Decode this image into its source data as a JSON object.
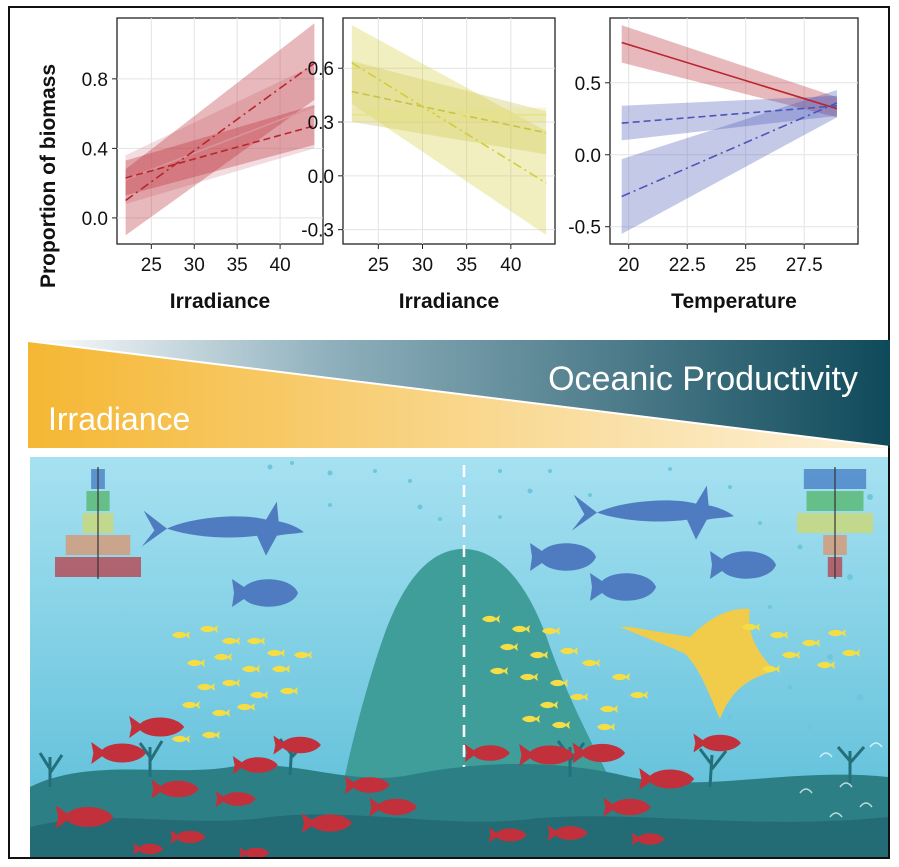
{
  "y_axis_title": "Proportion of biomass",
  "chart_data": [
    {
      "type": "line",
      "xlabel": "Irradiance",
      "ylabel": "Proportion of biomass",
      "xlim": [
        21,
        45
      ],
      "ylim": [
        -0.15,
        1.15
      ],
      "x_ticks": [
        "25",
        "30",
        "35",
        "40"
      ],
      "x_tick_values": [
        25,
        30,
        35,
        40
      ],
      "y_ticks": [
        "0.0",
        "0.4",
        "0.8"
      ],
      "y_tick_values": [
        0.0,
        0.4,
        0.8
      ],
      "grid": true,
      "series": [
        {
          "color": "#d9939b",
          "dash": "solid",
          "x": [
            22,
            44
          ],
          "y": [
            0.22,
            0.64
          ],
          "ci_lower": [
            0.08,
            0.4
          ],
          "ci_upper": [
            0.36,
            0.88
          ]
        },
        {
          "color": "#b8262f",
          "dash": "dashdot",
          "x": [
            22,
            44
          ],
          "y": [
            0.1,
            0.89
          ],
          "ci_lower": [
            -0.1,
            0.68
          ],
          "ci_upper": [
            0.28,
            1.12
          ]
        },
        {
          "color": "#b8262f",
          "dash": "dashed",
          "x": [
            22,
            44
          ],
          "y": [
            0.23,
            0.53
          ],
          "ci_lower": [
            0.13,
            0.42
          ],
          "ci_upper": [
            0.33,
            0.65
          ]
        }
      ]
    },
    {
      "type": "line",
      "xlabel": "Irradiance",
      "ylabel": "",
      "xlim": [
        21,
        45
      ],
      "ylim": [
        -0.38,
        0.88
      ],
      "x_ticks": [
        "25",
        "30",
        "35",
        "40"
      ],
      "x_tick_values": [
        25,
        30,
        35,
        40
      ],
      "y_ticks": [
        "-0.3",
        "0.0",
        "0.3",
        "0.6"
      ],
      "y_tick_values": [
        -0.3,
        0.0,
        0.3,
        0.6
      ],
      "grid": true,
      "series": [
        {
          "color": "#c8c24a",
          "dash": "dashed",
          "x": [
            22,
            44
          ],
          "y": [
            0.47,
            0.24
          ],
          "ci_lower": [
            0.3,
            0.12
          ],
          "ci_upper": [
            0.64,
            0.36
          ]
        },
        {
          "color": "#d4cc3a",
          "dash": "dashdot",
          "x": [
            22,
            44
          ],
          "y": [
            0.63,
            -0.04
          ],
          "ci_lower": [
            0.4,
            -0.33
          ],
          "ci_upper": [
            0.84,
            0.25
          ]
        },
        {
          "color": "#e6e28a",
          "dash": "solid",
          "x": [
            22,
            44
          ],
          "y": [
            0.34,
            0.34
          ],
          "ci_lower": [
            0.3,
            0.3
          ],
          "ci_upper": [
            0.38,
            0.38
          ]
        }
      ]
    },
    {
      "type": "line",
      "xlabel": "Temperature",
      "ylabel": "",
      "xlim": [
        19.2,
        29.8
      ],
      "ylim": [
        -0.62,
        0.95
      ],
      "x_ticks": [
        "20",
        "22.5",
        "25",
        "27.5"
      ],
      "x_tick_values": [
        20,
        22.5,
        25,
        27.5
      ],
      "y_ticks": [
        "-0.5",
        "0.0",
        "0.5"
      ],
      "y_tick_values": [
        -0.5,
        0.0,
        0.5
      ],
      "grid": true,
      "series": [
        {
          "color": "#b8262f",
          "dash": "solid",
          "x": [
            19.7,
            28.9
          ],
          "y": [
            0.78,
            0.32
          ],
          "ci_lower": [
            0.64,
            0.26
          ],
          "ci_upper": [
            0.9,
            0.4
          ]
        },
        {
          "color": "#4a56b8",
          "dash": "dashed",
          "x": [
            19.7,
            28.9
          ],
          "y": [
            0.22,
            0.34
          ],
          "ci_lower": [
            0.1,
            0.27
          ],
          "ci_upper": [
            0.34,
            0.41
          ]
        },
        {
          "color": "#4a56b8",
          "dash": "dashdot",
          "x": [
            19.7,
            28.9
          ],
          "y": [
            -0.29,
            0.36
          ],
          "ci_lower": [
            -0.55,
            0.26
          ],
          "ci_upper": [
            -0.03,
            0.45
          ]
        }
      ]
    }
  ],
  "gradient_band": {
    "left_label": "Irradiance",
    "right_label": "Oceanic Productivity",
    "colors": {
      "warm": "#f5b733",
      "cool": "#0f4a5a"
    }
  },
  "pyramids": {
    "left": [
      {
        "color": "#4f86c9",
        "width": 0.16
      },
      {
        "color": "#5cba75",
        "width": 0.27
      },
      {
        "color": "#c9d77a",
        "width": 0.36
      },
      {
        "color": "#d39a7a",
        "width": 0.75
      },
      {
        "color": "#b4505a",
        "width": 1.0
      }
    ],
    "right": [
      {
        "color": "#4f86c9",
        "width": 0.82
      },
      {
        "color": "#5cba75",
        "width": 0.75
      },
      {
        "color": "#c9d77a",
        "width": 1.0
      },
      {
        "color": "#d39a7a",
        "width": 0.31
      },
      {
        "color": "#b4505a",
        "width": 0.19
      }
    ]
  },
  "scene_colors": {
    "water_top": "#a6e1f1",
    "water_bottom": "#4fb9d6",
    "seamount": "#3f9d9a",
    "reef": "#2d7f86",
    "red_fish": "#c2313b",
    "yellow_fish": "#f4dd45",
    "shark": "#4f7cc0",
    "manta": "#f1cc4a"
  }
}
